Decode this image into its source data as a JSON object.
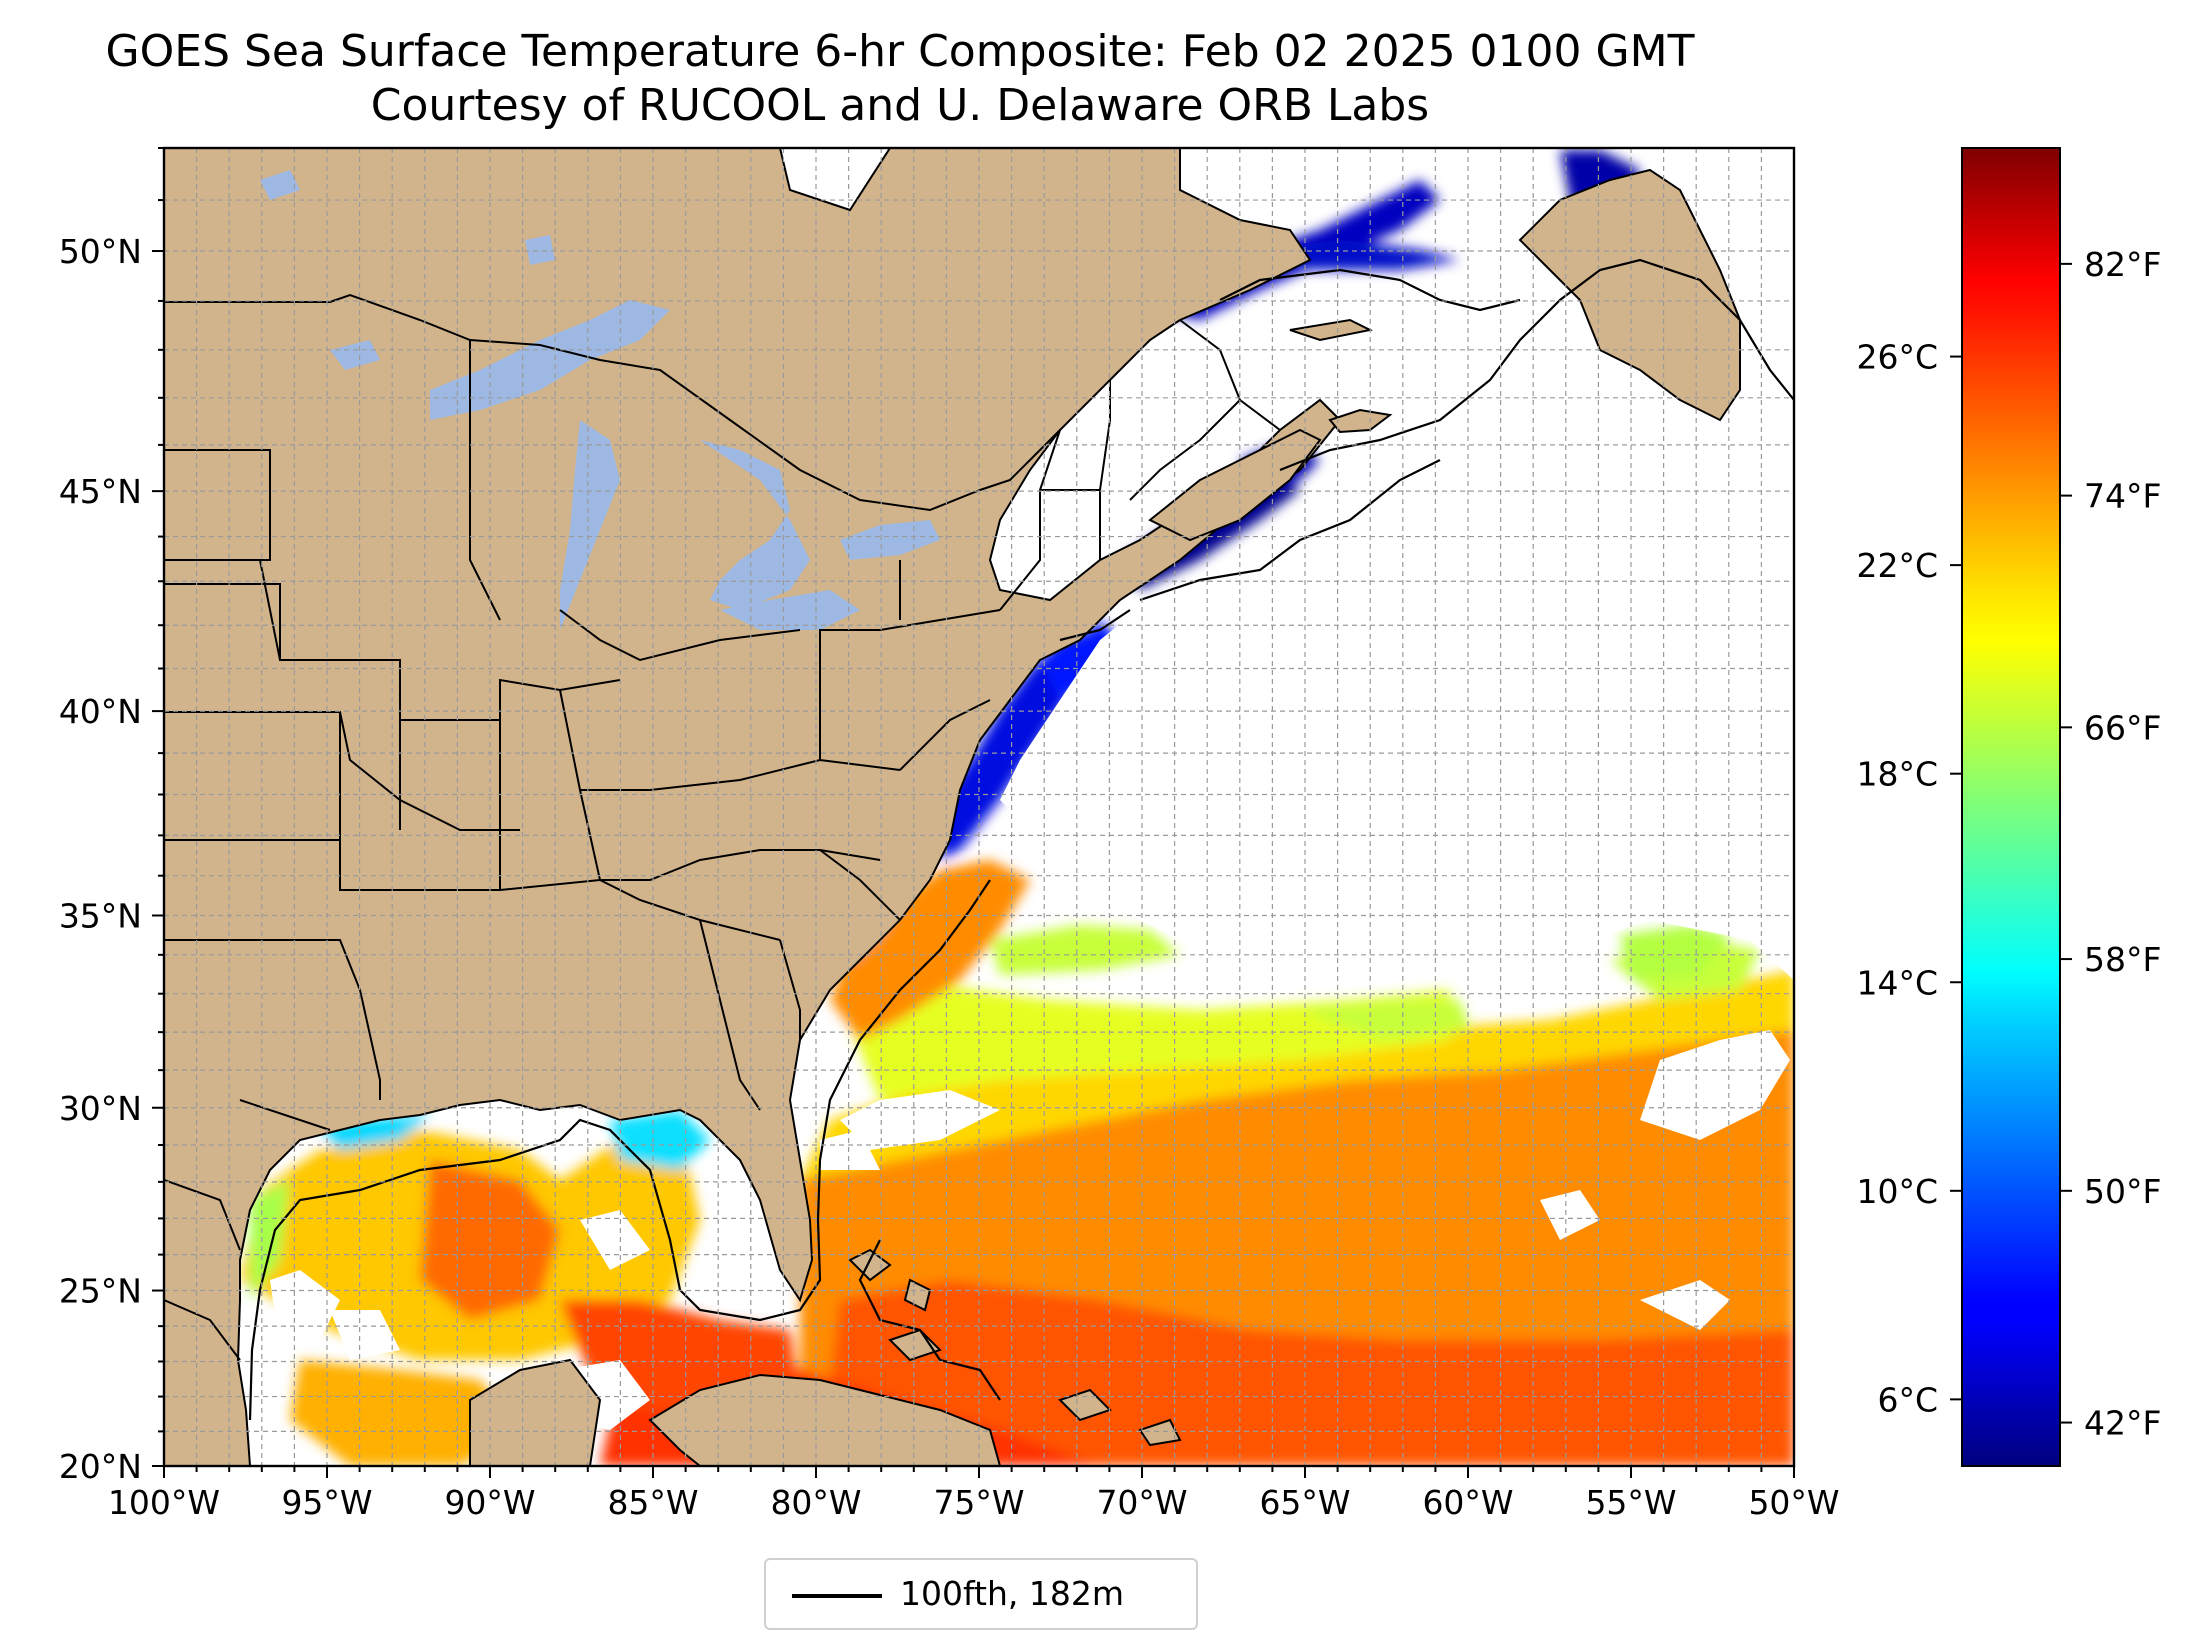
{
  "title": {
    "line1": "GOES Sea Surface Temperature 6-hr Composite: Feb 02 2025 0100 GMT",
    "line2": "Courtesy of RUCOOL and U. Delaware ORB Labs"
  },
  "map": {
    "extent": {
      "lon_min": -100,
      "lon_max": -50,
      "lat_min": 20,
      "lat_max": 52
    },
    "lon_ticks": [
      {
        "lon": -100,
        "label": "100°W"
      },
      {
        "lon": -95,
        "label": "95°W"
      },
      {
        "lon": -90,
        "label": "90°W"
      },
      {
        "lon": -85,
        "label": "85°W"
      },
      {
        "lon": -80,
        "label": "80°W"
      },
      {
        "lon": -75,
        "label": "75°W"
      },
      {
        "lon": -70,
        "label": "70°W"
      },
      {
        "lon": -65,
        "label": "65°W"
      },
      {
        "lon": -60,
        "label": "60°W"
      },
      {
        "lon": -55,
        "label": "55°W"
      },
      {
        "lon": -50,
        "label": "50°W"
      }
    ],
    "lat_ticks": [
      {
        "lat": 20,
        "label": "20°N"
      },
      {
        "lat": 25,
        "label": "25°N"
      },
      {
        "lat": 30,
        "label": "30°N"
      },
      {
        "lat": 35,
        "label": "35°N"
      },
      {
        "lat": 40,
        "label": "40°N"
      },
      {
        "lat": 45,
        "label": "45°N"
      },
      {
        "lat": 50,
        "label": "50°N"
      }
    ],
    "land_color": "#d2b48c",
    "lake_color": "#9db9e3",
    "grid": true
  },
  "colorbar": {
    "colormap": "jet",
    "celsius_ticks": [
      {
        "value": 6,
        "label": "6°C"
      },
      {
        "value": 10,
        "label": "10°C"
      },
      {
        "value": 14,
        "label": "14°C"
      },
      {
        "value": 18,
        "label": "18°C"
      },
      {
        "value": 22,
        "label": "22°C"
      },
      {
        "value": 26,
        "label": "26°C"
      }
    ],
    "fahrenheit_ticks": [
      {
        "value": 42,
        "label": "42°F"
      },
      {
        "value": 50,
        "label": "50°F"
      },
      {
        "value": 58,
        "label": "58°F"
      },
      {
        "value": 66,
        "label": "66°F"
      },
      {
        "value": 74,
        "label": "74°F"
      },
      {
        "value": 82,
        "label": "82°F"
      }
    ],
    "range_f": [
      40.5,
      86
    ]
  },
  "legend": {
    "label": "100fth, 182m"
  }
}
